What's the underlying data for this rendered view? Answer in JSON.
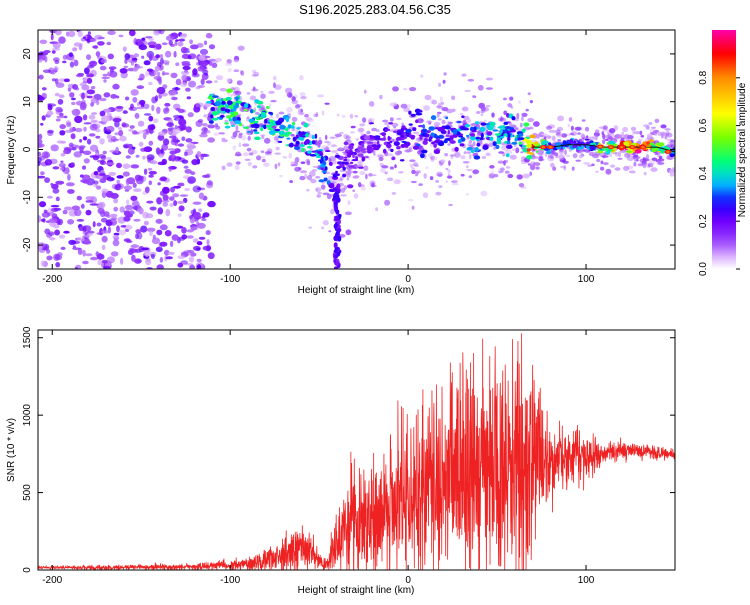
{
  "title": "S196.2025.283.04.56.C35",
  "chart_data": [
    {
      "type": "heatmap",
      "name": "spectrogram",
      "xlabel": "Height of straight line (km)",
      "ylabel": "Frequency (Hz)",
      "xlim": [
        -208,
        150
      ],
      "ylim": [
        -25,
        25
      ],
      "xticks": [
        -200,
        -100,
        0,
        100
      ],
      "yticks": [
        -20,
        -10,
        0,
        10,
        20
      ],
      "colorbar": {
        "label": "Normalized spectral amplitude",
        "range": [
          0,
          1
        ],
        "ticks": [
          "0.0",
          "0.2",
          "0.4",
          "0.6",
          "0.8"
        ],
        "tick_values": [
          0.0,
          0.2,
          0.4,
          0.6,
          0.8
        ],
        "colors": [
          "#ffffff",
          "#cc88ff",
          "#8800ff",
          "#0000ff",
          "#00e5ff",
          "#00ff66",
          "#66ff00",
          "#ffff00",
          "#ff9900",
          "#ff0000",
          "#ff00aa"
        ]
      },
      "ridge": {
        "x": [
          -110,
          -95,
          -80,
          -65,
          -55,
          -48,
          -42,
          -38,
          -30,
          -20,
          -10,
          0,
          10,
          20,
          30,
          40,
          50,
          60,
          70,
          80,
          90,
          100,
          110,
          120,
          130,
          140,
          150
        ],
        "freq": [
          9,
          8,
          6,
          3,
          1,
          -3,
          -7,
          -3,
          -1,
          1,
          2,
          3,
          3,
          3,
          3,
          3,
          3,
          3,
          0.5,
          0.5,
          1,
          1,
          0.5,
          0.5,
          0.5,
          0.5,
          -0.5
        ],
        "amplitude": [
          0.45,
          0.5,
          0.5,
          0.45,
          0.4,
          0.35,
          0.3,
          0.25,
          0.2,
          0.22,
          0.25,
          0.28,
          0.3,
          0.3,
          0.35,
          0.35,
          0.4,
          0.35,
          0.95,
          0.3,
          0.35,
          0.35,
          0.6,
          0.95,
          0.95,
          0.7,
          0.4
        ]
      },
      "notes": "Broadband noise for heights below -110 km; dip to -25 Hz near -40 km"
    },
    {
      "type": "line",
      "name": "snr",
      "xlabel": "Height of straight line (km)",
      "ylabel": "SNR (10 * v/v)",
      "xlim": [
        -208,
        150
      ],
      "ylim": [
        0,
        1550
      ],
      "xticks": [
        -200,
        -100,
        0,
        100
      ],
      "yticks": [
        0,
        500,
        1000,
        1500
      ],
      "color": "#ee2222",
      "envelope": {
        "x": [
          -208,
          -180,
          -150,
          -120,
          -100,
          -90,
          -80,
          -70,
          -60,
          -55,
          -50,
          -45,
          -40,
          -35,
          -30,
          -20,
          -10,
          0,
          10,
          20,
          30,
          40,
          50,
          60,
          70,
          75,
          80,
          90,
          100,
          110,
          120,
          130,
          140,
          150
        ],
        "mean": [
          15,
          15,
          18,
          20,
          30,
          40,
          60,
          100,
          140,
          130,
          60,
          30,
          200,
          300,
          320,
          350,
          400,
          450,
          520,
          580,
          640,
          680,
          700,
          720,
          700,
          680,
          720,
          740,
          750,
          750,
          760,
          760,
          755,
          750
        ],
        "amplitude": [
          10,
          10,
          15,
          20,
          30,
          40,
          60,
          90,
          120,
          110,
          50,
          30,
          180,
          250,
          280,
          320,
          380,
          420,
          480,
          520,
          560,
          600,
          650,
          700,
          560,
          380,
          200,
          160,
          140,
          70,
          50,
          40,
          35,
          30
        ]
      }
    }
  ]
}
